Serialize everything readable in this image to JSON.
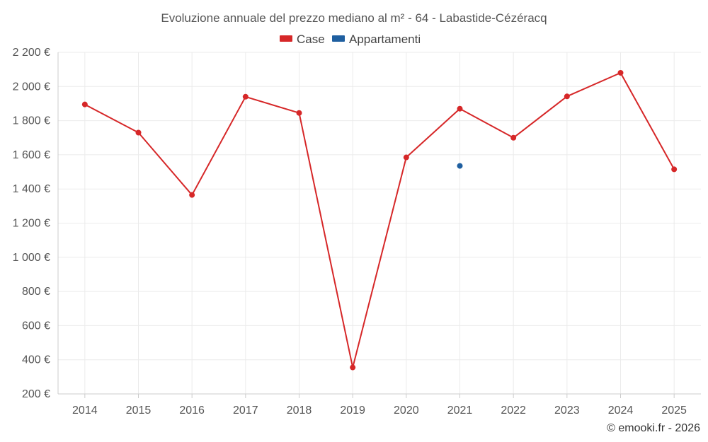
{
  "chart_data": {
    "type": "line",
    "title": "Evoluzione annuale del prezzo mediano al m² - 64 - Labastide-Cézéracq",
    "categories": [
      "2014",
      "2015",
      "2016",
      "2017",
      "2018",
      "2019",
      "2020",
      "2021",
      "2022",
      "2023",
      "2024",
      "2025"
    ],
    "ylim": [
      200,
      2200
    ],
    "yticks": [
      200,
      400,
      600,
      800,
      1000,
      1200,
      1400,
      1600,
      1800,
      2000,
      2200
    ],
    "ytick_labels": [
      "200 €",
      "400 €",
      "600 €",
      "800 €",
      "1 000 €",
      "1 200 €",
      "1 400 €",
      "1 600 €",
      "1 800 €",
      "2 000 €",
      "2 200 €"
    ],
    "xlabel": "",
    "ylabel": "",
    "grid": true,
    "legend_position": "top-center",
    "series": [
      {
        "name": "Case",
        "color": "#d62728",
        "values": [
          1895,
          1730,
          1365,
          1940,
          1845,
          355,
          1585,
          1870,
          1700,
          1942,
          2080,
          1515
        ]
      },
      {
        "name": "Appartamenti",
        "color": "#1f5fa0",
        "values": [
          null,
          null,
          null,
          null,
          null,
          null,
          null,
          1535,
          null,
          null,
          null,
          null
        ]
      }
    ]
  },
  "credit": "© emooki.fr - 2026"
}
